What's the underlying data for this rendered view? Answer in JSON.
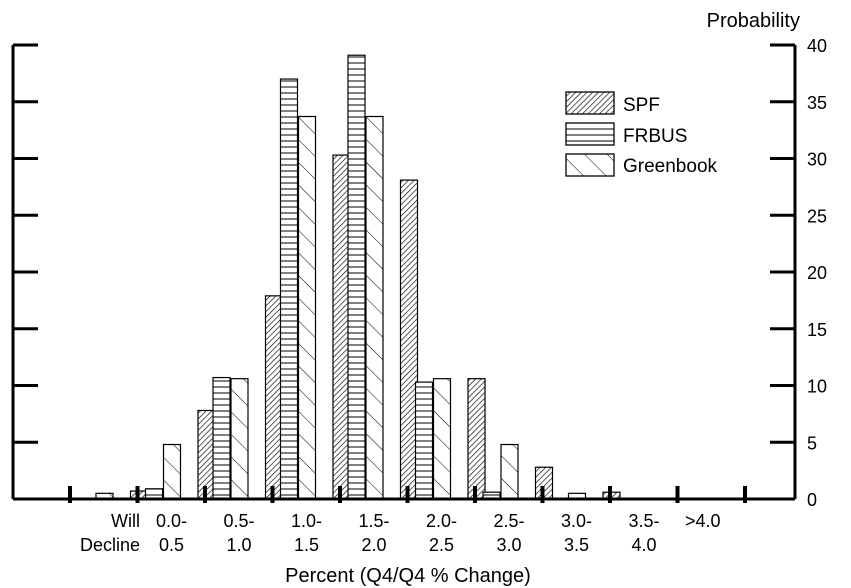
{
  "chart_data": {
    "type": "bar",
    "xlabel": "Percent (Q4/Q4 % Change)",
    "ylabel": "Probability",
    "ylim": [
      0,
      40
    ],
    "yticks": [
      0,
      5,
      10,
      15,
      20,
      25,
      30,
      35,
      40
    ],
    "grid": false,
    "legend_position": "top-right",
    "categories": [
      [
        "Will",
        "Decline"
      ],
      [
        "0.0-",
        "0.5"
      ],
      [
        "0.5-",
        "1.0"
      ],
      [
        "1.0-",
        "1.5"
      ],
      [
        "1.5-",
        "2.0"
      ],
      [
        "2.0-",
        "2.5"
      ],
      [
        "2.5-",
        "3.0"
      ],
      [
        "3.0-",
        "3.5"
      ],
      [
        "3.5-",
        "4.0"
      ],
      [
        ">4.0"
      ]
    ],
    "series": [
      {
        "name": "SPF",
        "pattern": "diagonal-dense",
        "values": [
          0.0,
          0.7,
          7.8,
          17.9,
          30.3,
          28.1,
          10.6,
          2.8,
          0.6,
          0.0
        ]
      },
      {
        "name": "FRBUS",
        "pattern": "horizontal",
        "values": [
          0.0,
          0.9,
          10.7,
          37.0,
          39.1,
          10.3,
          0.6,
          0.0,
          0.0,
          0.0
        ]
      },
      {
        "name": "Greenbook",
        "pattern": "diagonal-sparse",
        "values": [
          0.5,
          4.8,
          10.6,
          33.7,
          33.7,
          10.6,
          4.8,
          0.5,
          0.0,
          0.0
        ]
      }
    ]
  }
}
